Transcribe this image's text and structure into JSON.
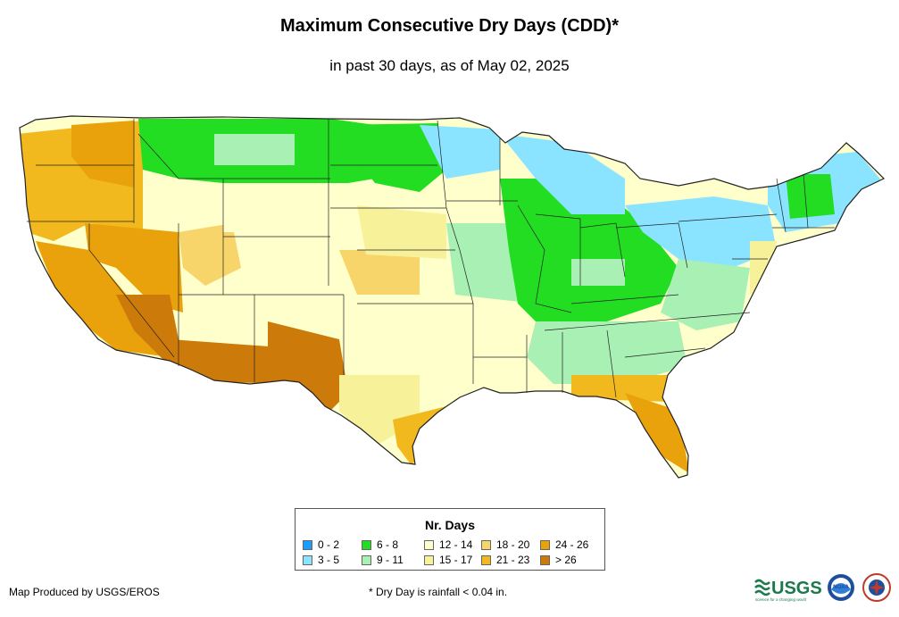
{
  "header": {
    "title": "Maximum Consecutive Dry Days (CDD)*",
    "subtitle": "in past 30 days, as of May 02, 2025"
  },
  "legend": {
    "title": "Nr. Days",
    "items": [
      {
        "label": "0 - 2",
        "color": "#1a9dff"
      },
      {
        "label": "3 - 5",
        "color": "#8ae4ff"
      },
      {
        "label": "6 - 8",
        "color": "#22dd22"
      },
      {
        "label": "9 - 11",
        "color": "#a9f0b4"
      },
      {
        "label": "12 - 14",
        "color": "#ffffcc"
      },
      {
        "label": "15 - 17",
        "color": "#f7f29a"
      },
      {
        "label": "18 - 20",
        "color": "#f7d56a"
      },
      {
        "label": "21 - 23",
        "color": "#f2b91e"
      },
      {
        "label": "24 - 26",
        "color": "#e9a20b"
      },
      {
        "label": "> 26",
        "color": "#cc7a0a"
      }
    ]
  },
  "footer": {
    "producer": "Map Produced by USGS/EROS",
    "note": "* Dry Day is rainfall < 0.04 in."
  },
  "logos": {
    "usgs_text": "USGS",
    "usgs_tagline": "science for a changing world",
    "noaa_text": "NOAA"
  }
}
